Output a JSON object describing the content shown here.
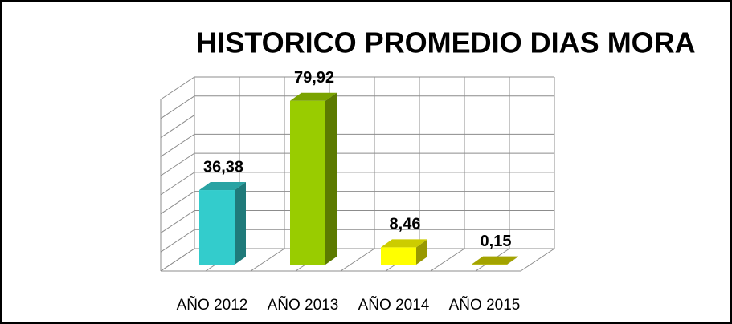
{
  "chart_data": {
    "type": "bar3d",
    "title": "HISTORICO PROMEDIO DIAS MORA",
    "categories": [
      "AÑO 2012",
      "AÑO 2013",
      "AÑO 2014",
      "AÑO 2015"
    ],
    "values": [
      36.38,
      79.92,
      8.46,
      0.15
    ],
    "value_labels": [
      "36,38",
      "79,92",
      "8,46",
      "0,15"
    ],
    "colors": [
      "#33cccc",
      "#99cc00",
      "#ffff00",
      "#cccc00"
    ],
    "ylim": [
      0,
      90
    ],
    "yticks": [
      0,
      10,
      20,
      30,
      40,
      50,
      60,
      70,
      80,
      90
    ],
    "grid": true
  }
}
